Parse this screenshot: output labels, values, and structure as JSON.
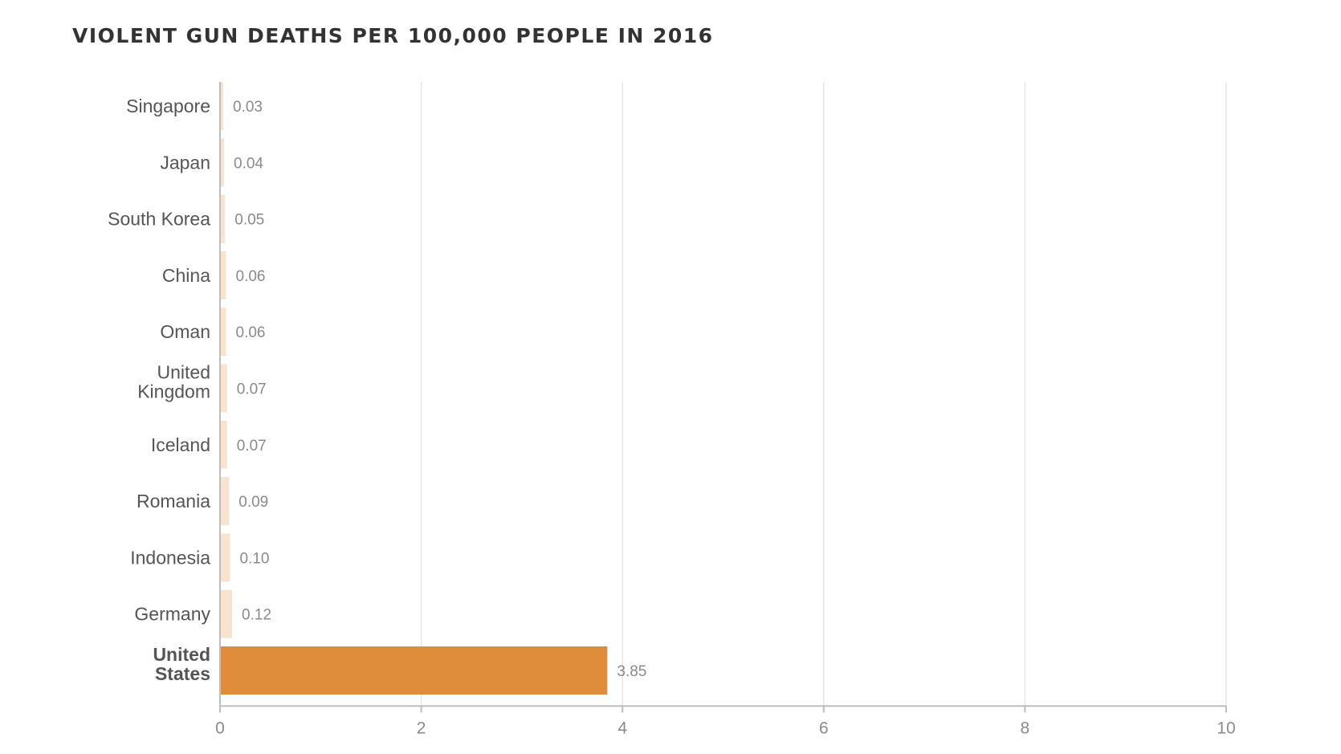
{
  "chart_data": {
    "type": "bar",
    "orientation": "horizontal",
    "title": "VIOLENT GUN DEATHS PER 100,000 PEOPLE IN 2016",
    "categories": [
      "Singapore",
      "Japan",
      "South Korea",
      "China",
      "Oman",
      "United Kingdom",
      "Iceland",
      "Romania",
      "Indonesia",
      "Germany",
      "United States"
    ],
    "values": [
      0.03,
      0.04,
      0.05,
      0.06,
      0.06,
      0.07,
      0.07,
      0.09,
      0.1,
      0.12,
      3.85
    ],
    "value_labels": [
      "0.03",
      "0.04",
      "0.05",
      "0.06",
      "0.06",
      "0.07",
      "0.07",
      "0.09",
      "0.10",
      "0.12",
      "3.85"
    ],
    "highlight": "United States",
    "xlim": [
      0,
      10
    ],
    "xticks": [
      0,
      2,
      4,
      6,
      8,
      10
    ],
    "xtick_labels": [
      "0",
      "2",
      "4",
      "6",
      "8",
      "10"
    ],
    "grid": true,
    "legend": "none",
    "colors": {
      "bar": "#f8e3cf",
      "highlight_bar": "#e08d3b",
      "label": "#555555",
      "value_label": "#8a8a8a",
      "grid": "#e6e6e6",
      "axis": "#bdbdbd"
    }
  }
}
